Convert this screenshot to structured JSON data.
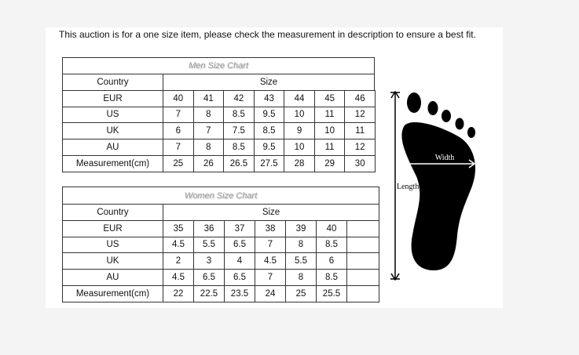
{
  "header": {
    "title": "This auction is for a one size item, please check the measurement in description to ensure a best fit."
  },
  "men_chart": {
    "title": "Men Size Chart",
    "columns": [
      "Country",
      "Size"
    ],
    "rows": [
      {
        "label": "EUR",
        "values": [
          40,
          41,
          42,
          43,
          44,
          45,
          46
        ]
      },
      {
        "label": "US",
        "values": [
          7,
          8,
          8.5,
          9.5,
          10,
          11,
          12
        ]
      },
      {
        "label": "UK",
        "values": [
          6,
          7,
          7.5,
          8.5,
          9,
          10,
          11
        ]
      },
      {
        "label": "AU",
        "values": [
          7,
          8,
          8.5,
          9.5,
          10,
          11,
          12
        ]
      },
      {
        "label": "Measurement(cm)",
        "values": [
          25,
          26,
          26.5,
          27.5,
          28,
          29,
          30
        ]
      }
    ]
  },
  "women_chart": {
    "title": "Women Size Chart",
    "columns": [
      "Country",
      "Size"
    ],
    "rows": [
      {
        "label": "EUR",
        "values": [
          35,
          36,
          37,
          38,
          39,
          40
        ]
      },
      {
        "label": "US",
        "values": [
          4.5,
          5.5,
          6.5,
          7,
          8,
          8.5
        ]
      },
      {
        "label": "UK",
        "values": [
          2,
          3,
          4,
          4.5,
          5.5,
          6
        ]
      },
      {
        "label": "AU",
        "values": [
          4.5,
          6.5,
          6.5,
          7,
          8,
          8.5
        ]
      },
      {
        "label": "Measurement(cm)",
        "values": [
          22,
          22.5,
          23.5,
          24,
          25,
          25.5
        ]
      }
    ]
  },
  "diagram": {
    "width_label": "Width",
    "length_label": "Length"
  }
}
